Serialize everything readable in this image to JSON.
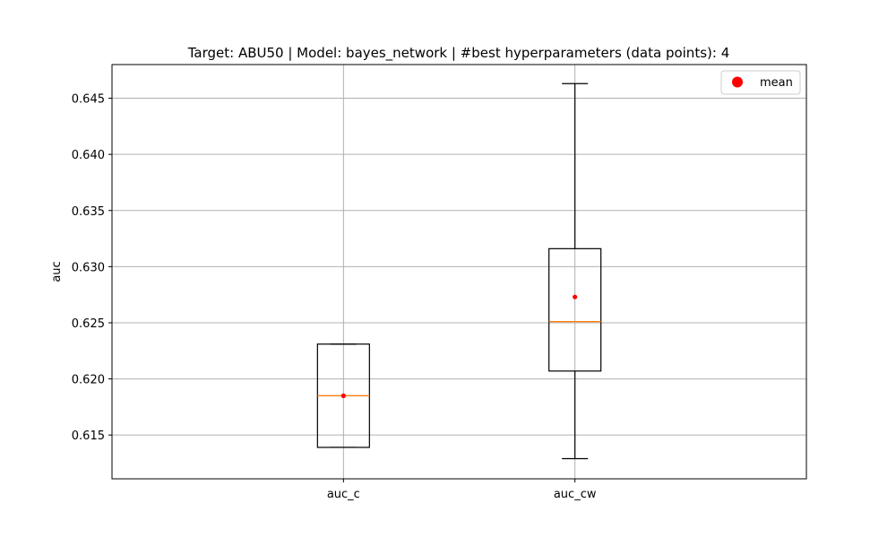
{
  "chart_data": {
    "type": "boxplot",
    "title": "Target: ABU50 | Model: bayes_network | #best hyperparameters (data points): 4",
    "xlabel": "",
    "ylabel": "auc",
    "ylim": [
      0.6111,
      0.648
    ],
    "yticks": [
      "0.615",
      "0.620",
      "0.625",
      "0.630",
      "0.635",
      "0.640",
      "0.645"
    ],
    "grid": true,
    "legend": {
      "position": "top-right",
      "entries": [
        {
          "label": "mean",
          "color": "#ff0000",
          "marker": "circle"
        }
      ]
    },
    "categories": [
      "auc_c",
      "auc_cw"
    ],
    "boxes": [
      {
        "category": "auc_c",
        "whisker_low": 0.6139,
        "q1": 0.6139,
        "median": 0.6185,
        "q3": 0.6231,
        "whisker_high": 0.6231,
        "mean": 0.6185
      },
      {
        "category": "auc_cw",
        "whisker_low": 0.6129,
        "q1": 0.6207,
        "median": 0.6251,
        "q3": 0.6316,
        "whisker_high": 0.6463,
        "mean": 0.6273
      }
    ],
    "colors": {
      "box": "#000000",
      "median": "#ff7f0e",
      "mean": "#ff0000",
      "grid": "#b0b0b0"
    }
  }
}
